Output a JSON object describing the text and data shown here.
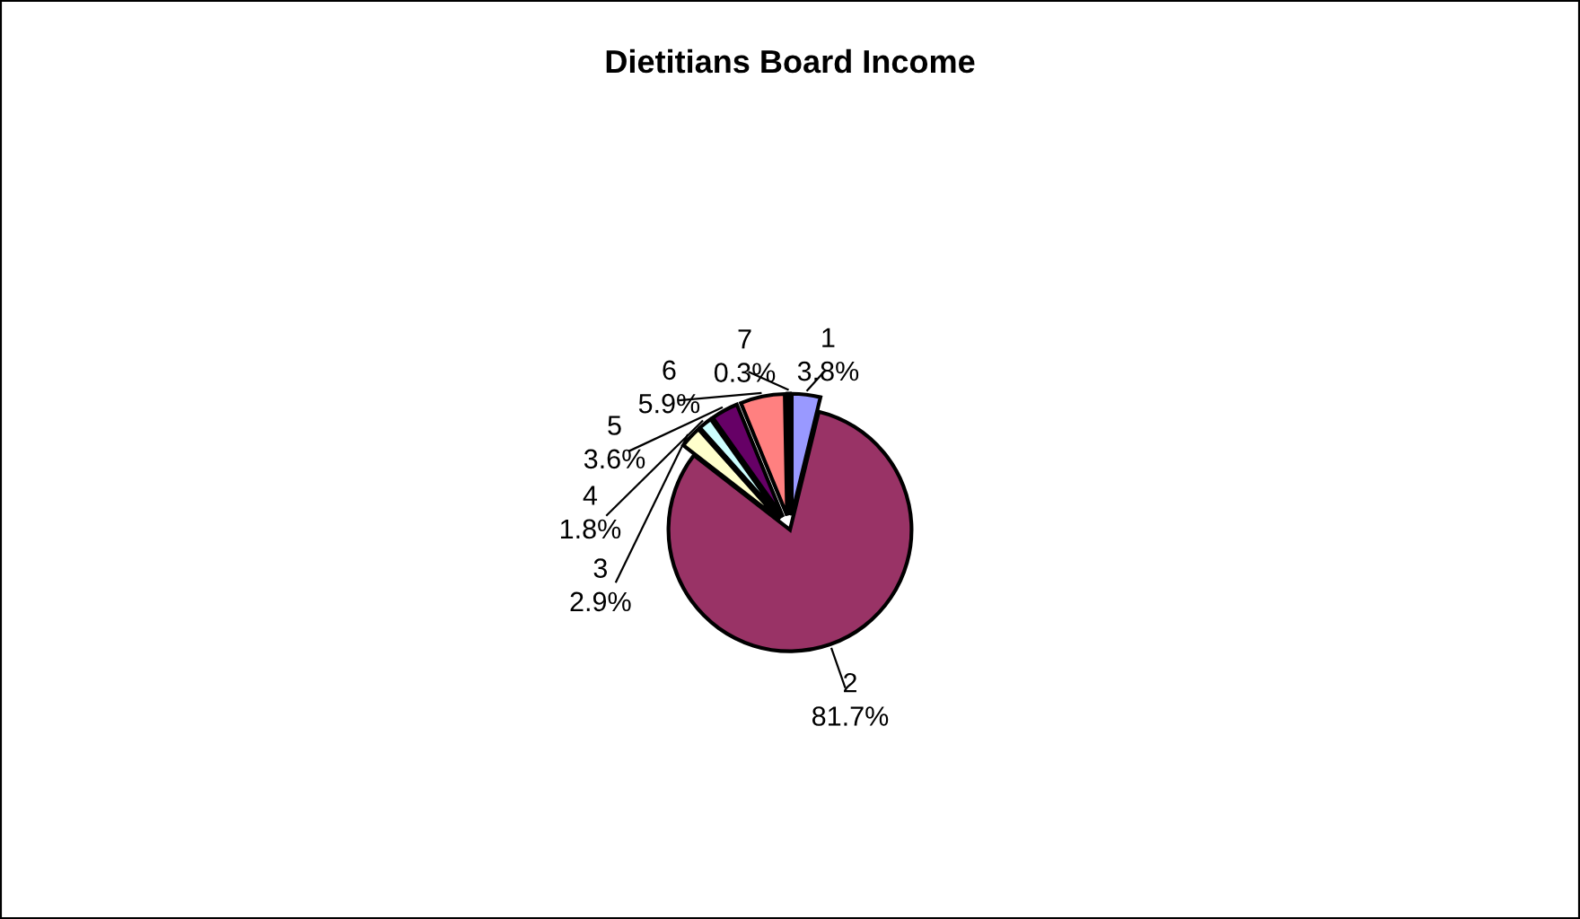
{
  "chart_data": {
    "type": "pie",
    "title": "Dietitians Board Income",
    "categories": [
      "1",
      "2",
      "3",
      "4",
      "5",
      "6",
      "7"
    ],
    "values": [
      3.8,
      81.7,
      2.9,
      1.8,
      3.6,
      5.9,
      0.3
    ],
    "colors": [
      "#9999ff",
      "#993366",
      "#ffffcc",
      "#ccffff",
      "#660066",
      "#ff8080",
      "#1a1a40"
    ],
    "value_labels": [
      "3.8%",
      "81.7%",
      "2.9%",
      "1.8%",
      "3.6%",
      "5.9%",
      "0.3%"
    ],
    "legend": false
  }
}
